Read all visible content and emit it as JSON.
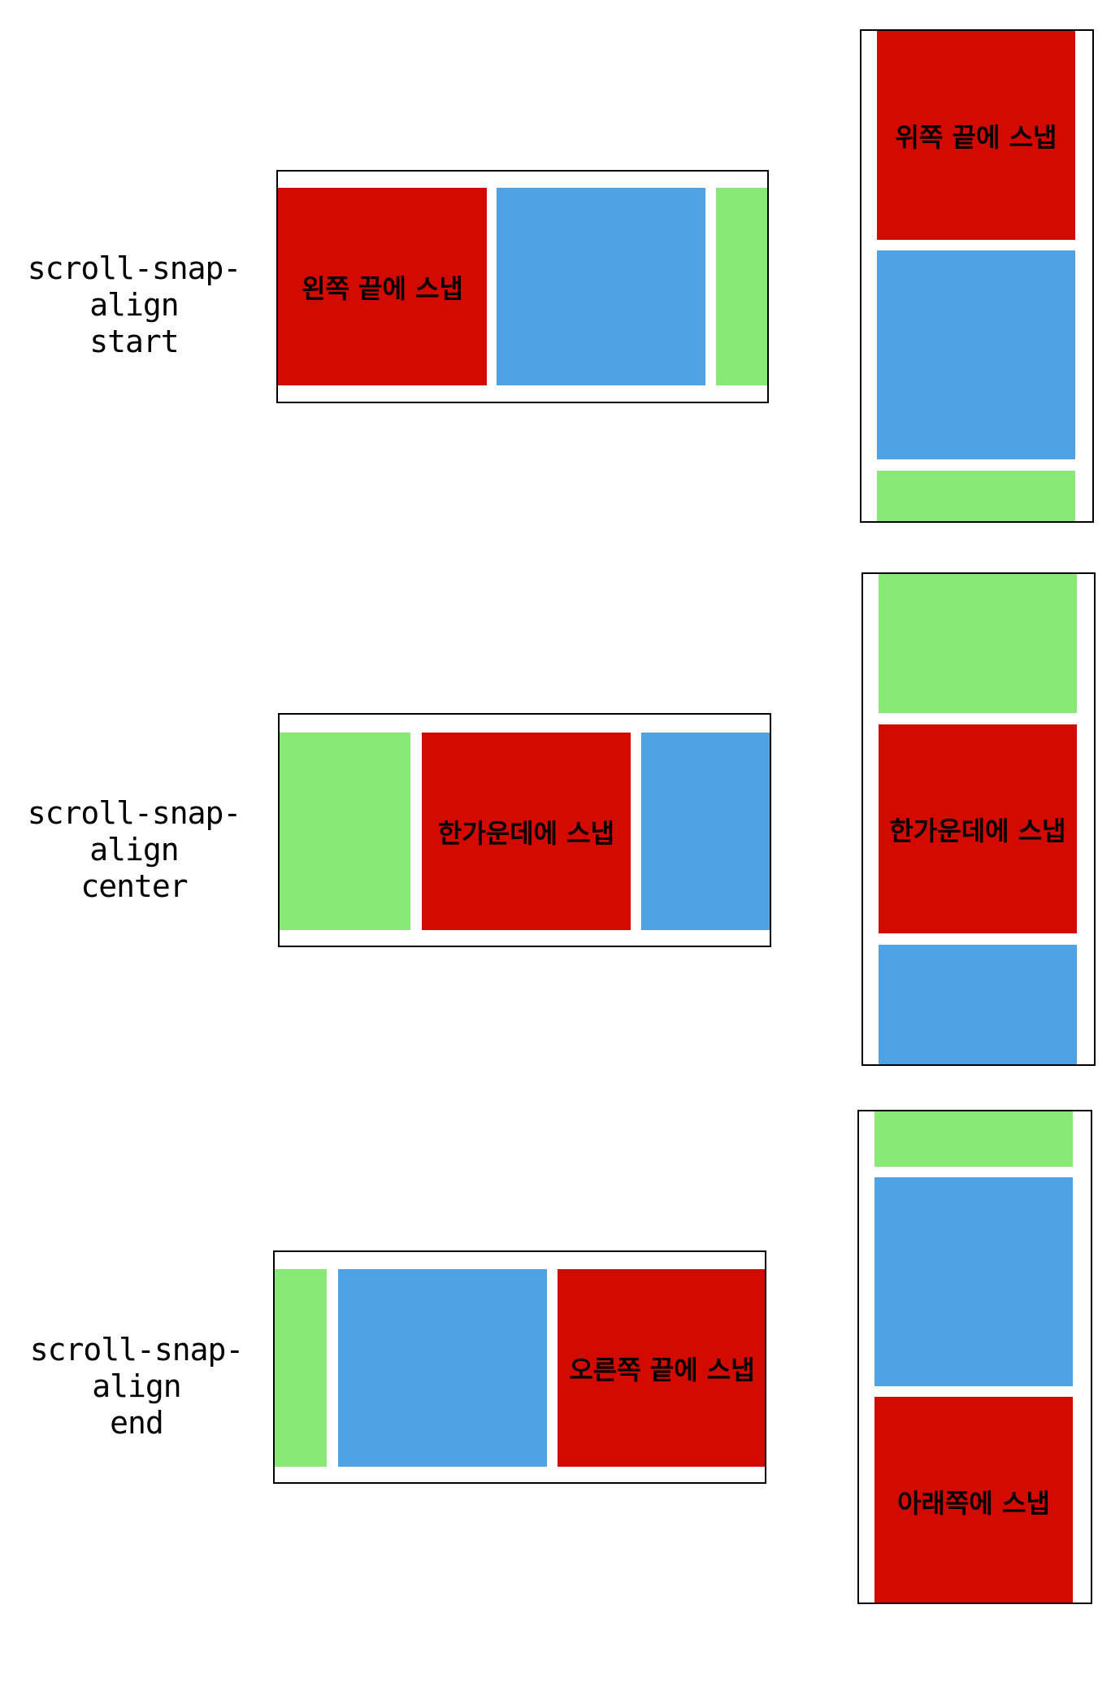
{
  "colors": {
    "red": "#d20a00",
    "blue": "#4fa2e3",
    "green": "#88e976",
    "border": "#000000"
  },
  "rows": [
    {
      "label_line1": "scroll-snap-align",
      "label_line2": "start",
      "horizontal_text": "왼쪽 끝에 스냅",
      "vertical_text": "위쪽 끝에 스냅"
    },
    {
      "label_line1": "scroll-snap-align",
      "label_line2": "center",
      "horizontal_text": "한가운데에 스냅",
      "vertical_text": "한가운데에 스냅"
    },
    {
      "label_line1": "scroll-snap-align",
      "label_line2": "end",
      "horizontal_text": "오른쪽 끝에 스냅",
      "vertical_text": "아래쪽에 스냅"
    }
  ]
}
